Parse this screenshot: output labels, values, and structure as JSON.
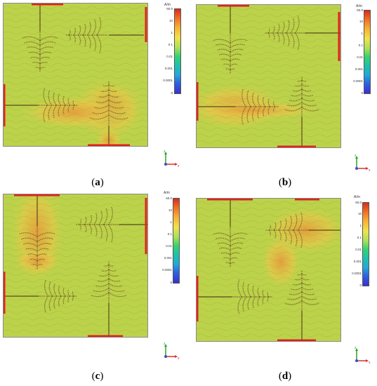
{
  "panels": [
    {
      "id": "a",
      "caption_prefix": "(",
      "caption_letter": "a",
      "caption_suffix": ")"
    },
    {
      "id": "b",
      "caption_prefix": "(",
      "caption_letter": "b",
      "caption_suffix": ")"
    },
    {
      "id": "c",
      "caption_prefix": "(",
      "caption_letter": "c",
      "caption_suffix": ")"
    },
    {
      "id": "d",
      "caption_prefix": "(",
      "caption_letter": "d",
      "caption_suffix": ")"
    }
  ],
  "colorbar": {
    "unit": "A/m",
    "ticks": [
      "60.0",
      "10",
      "1",
      "0.1",
      "0.01",
      "0.001",
      "0.0001",
      "0"
    ]
  },
  "axes": {
    "z": "z",
    "x": "x"
  },
  "colors": {
    "field_low": "#bcd24a",
    "field_mid": "#e6c84a",
    "field_high": "#e89a3c",
    "port": "#e0221e",
    "pattern": "#7a6a2a"
  }
}
